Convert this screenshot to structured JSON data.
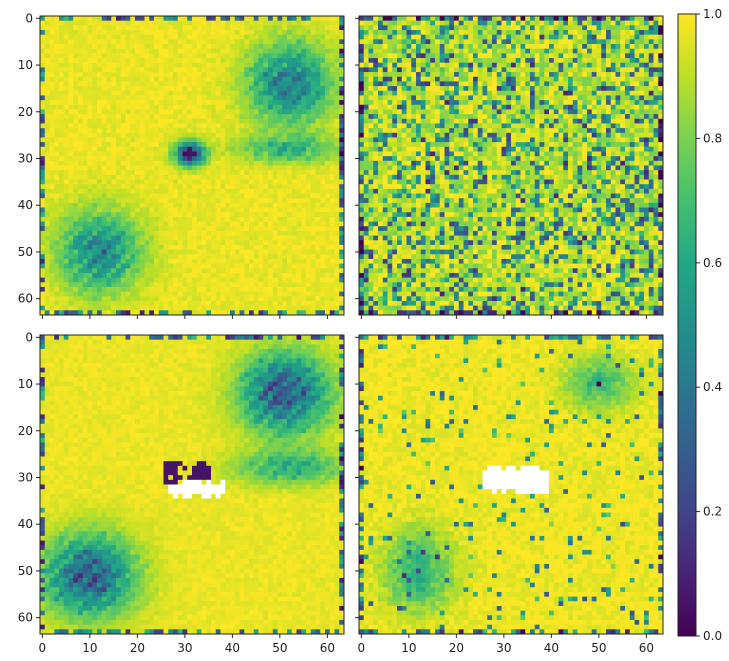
{
  "chart_data": {
    "type": "heatmap",
    "colormap": "viridis",
    "clim": [
      0.0,
      1.0
    ],
    "grid": false,
    "resolution": [
      64,
      64
    ],
    "x_ticks": [
      "0",
      "10",
      "20",
      "30",
      "40",
      "50",
      "60"
    ],
    "y_ticks": [
      "0",
      "10",
      "20",
      "30",
      "40",
      "50",
      "60"
    ],
    "colorbar": {
      "position": "right",
      "ticks": [
        "0.0",
        "0.2",
        "0.4",
        "0.6",
        "0.8",
        "1.0"
      ],
      "values": [
        0.0,
        0.2,
        0.4,
        0.6,
        0.8,
        1.0
      ]
    },
    "panels": [
      {
        "position": "top-left",
        "background": 0.97,
        "noise": 0.04,
        "blobs": [
          {
            "cx": 52,
            "cy": 14,
            "sx": 6,
            "sy": 6,
            "depth": 0.65,
            "striped": true
          },
          {
            "cx": 12,
            "cy": 50,
            "sx": 6,
            "sy": 6,
            "depth": 0.6,
            "striped": true
          },
          {
            "cx": 31,
            "cy": 29,
            "sx": 2.2,
            "sy": 1.8,
            "depth": 0.85,
            "striped": false
          },
          {
            "cx": 52,
            "cy": 28,
            "sx": 8,
            "sy": 2,
            "depth": 0.35,
            "striped": true
          }
        ],
        "border_noise": true,
        "speckle": 0.0,
        "holes": []
      },
      {
        "position": "top-right",
        "background": 0.9,
        "noise": 0.12,
        "blobs": [],
        "border_noise": true,
        "speckle": 0.28,
        "holes": []
      },
      {
        "position": "bottom-left",
        "background": 0.97,
        "noise": 0.03,
        "blobs": [
          {
            "cx": 51,
            "cy": 12,
            "sx": 6.5,
            "sy": 6,
            "depth": 0.8,
            "striped": true
          },
          {
            "cx": 10,
            "cy": 51,
            "sx": 6.5,
            "sy": 6,
            "depth": 0.8,
            "striped": true
          },
          {
            "cx": 52,
            "cy": 28,
            "sx": 8,
            "sy": 2.5,
            "depth": 0.4,
            "striped": true
          }
        ],
        "border_noise": true,
        "speckle": 0.0,
        "dark_patch": {
          "x0": 26,
          "x1": 35,
          "y0": 27,
          "y1": 31,
          "value": 0.05
        },
        "holes": [
          {
            "x0": 27,
            "x1": 38,
            "y0": 31,
            "y1": 34
          }
        ]
      },
      {
        "position": "bottom-right",
        "background": 0.98,
        "noise": 0.05,
        "blobs": [
          {
            "cx": 50,
            "cy": 10,
            "sx": 5,
            "sy": 4,
            "depth": 0.3,
            "striped": false
          },
          {
            "cx": 12,
            "cy": 50,
            "sx": 5,
            "sy": 6,
            "depth": 0.35,
            "striped": false
          }
        ],
        "border_noise": true,
        "speckle": 0.05,
        "holes": [
          {
            "x0": 26,
            "x1": 39,
            "y0": 28,
            "y1": 33
          }
        ]
      }
    ]
  }
}
